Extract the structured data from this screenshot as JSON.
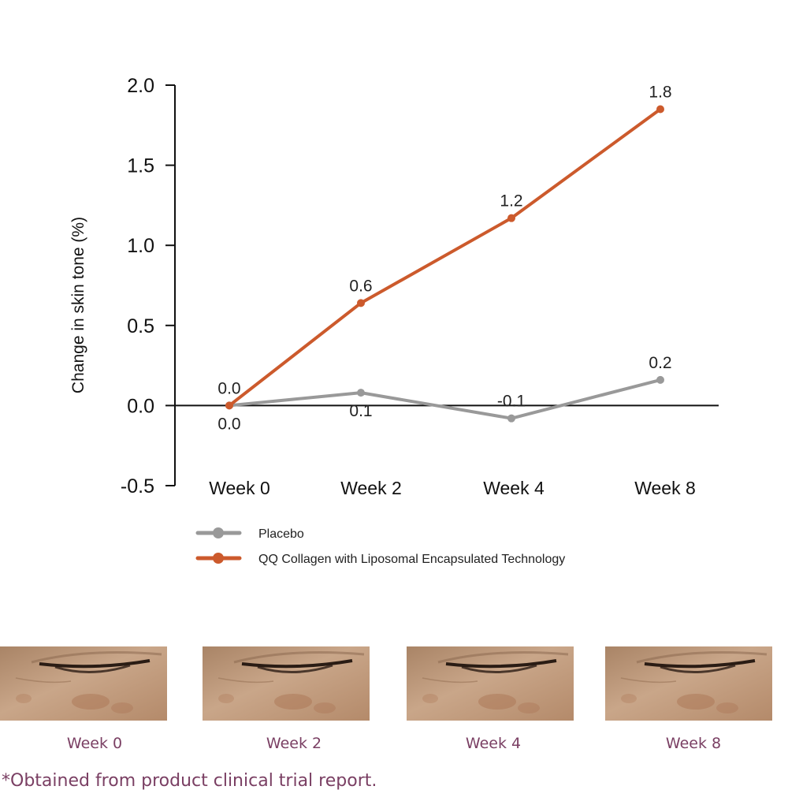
{
  "colors": {
    "placebo": "#999999",
    "treatment": "#cc5a2c",
    "axis": "#111111",
    "caption": "#7a3f63",
    "skin_light": "#c9a689",
    "skin_dark": "#b48a6a",
    "lash": "#2a1c14"
  },
  "chart_data": {
    "type": "line",
    "categories": [
      "Week 0",
      "Week 2",
      "Week 4",
      "Week 8"
    ],
    "ylabel": "Change in skin tone (%)",
    "ylim": [
      -0.5,
      2.0
    ],
    "yticks": [
      "2.0",
      "1.5",
      "1.0",
      "0.5",
      "0.0",
      "-0.5"
    ],
    "grid": false,
    "legend_position": "bottom",
    "series": [
      {
        "name": "Placebo",
        "color": "#999999",
        "values": [
          0.0,
          0.08,
          -0.08,
          0.16
        ],
        "labels": [
          "0.0",
          "0.1",
          "-0.1",
          "0.2"
        ],
        "label_positions": [
          "below",
          "below",
          "above",
          "above"
        ]
      },
      {
        "name": "QQ Collagen with Liposomal Encapsulated Technology",
        "color": "#cc5a2c",
        "values": [
          0.0,
          0.64,
          1.17,
          1.85
        ],
        "labels": [
          "0.0",
          "0.6",
          "1.2",
          "1.8"
        ],
        "label_positions": [
          "above",
          "above",
          "above",
          "above"
        ]
      }
    ]
  },
  "photos": [
    {
      "caption": "Week 0",
      "icon": "eye-skin-photo"
    },
    {
      "caption": "Week 2",
      "icon": "eye-skin-photo"
    },
    {
      "caption": "Week 4",
      "icon": "eye-skin-photo"
    },
    {
      "caption": "Week 8",
      "icon": "eye-skin-photo"
    }
  ],
  "footnote": "*Obtained from product clinical trial report."
}
